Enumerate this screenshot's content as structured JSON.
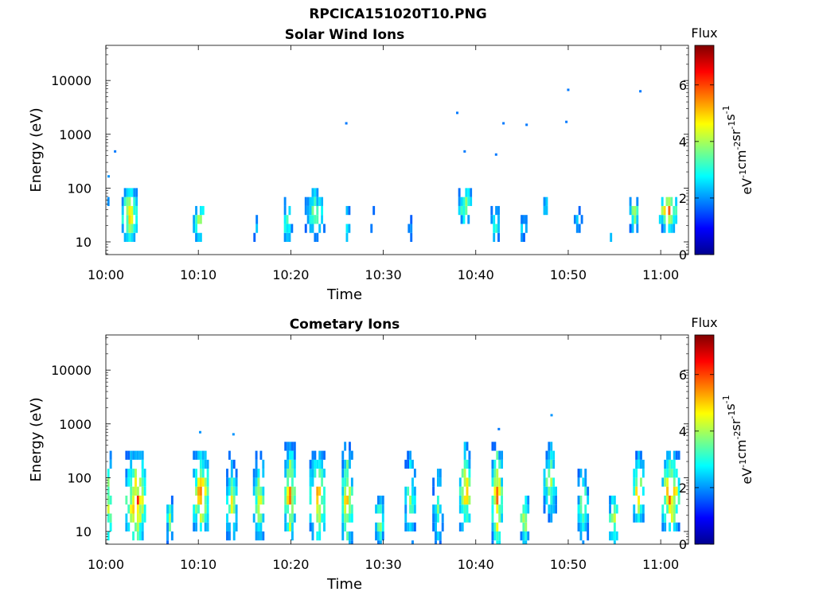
{
  "figure_title": "RPCICA151020T10.PNG",
  "chart_data": [
    {
      "type": "heatmap",
      "title": "Solar Wind Ions",
      "xlabel": "Time",
      "ylabel": "Energy (eV)",
      "x_range_minutes": [
        0,
        63
      ],
      "x_ticks": [
        {
          "minute": 0,
          "label": "10:00"
        },
        {
          "minute": 10,
          "label": "10:10"
        },
        {
          "minute": 20,
          "label": "10:20"
        },
        {
          "minute": 30,
          "label": "10:30"
        },
        {
          "minute": 40,
          "label": "10:40"
        },
        {
          "minute": 50,
          "label": "10:50"
        },
        {
          "minute": 60,
          "label": "11:00"
        }
      ],
      "y_scale": "log",
      "y_range": [
        5.8,
        45000
      ],
      "y_ticks": [
        {
          "value": 10,
          "label": "10"
        },
        {
          "value": 100,
          "label": "100"
        },
        {
          "value": 1000,
          "label": "1000"
        },
        {
          "value": 10000,
          "label": "10000"
        }
      ],
      "colorbar": {
        "title": "Flux",
        "range": [
          0,
          7.4
        ],
        "ticks": [
          0,
          2,
          4,
          6
        ],
        "units_base": [
          "eV",
          "cm",
          "sr",
          "s"
        ],
        "units_exp": [
          "-1",
          "-2",
          "-1",
          "-1"
        ]
      },
      "bursts": [
        {
          "t": 0.1,
          "e_lo": 25,
          "e_hi": 60,
          "peak": 3.0,
          "w": 0.4
        },
        {
          "t": 2.5,
          "e_lo": 12,
          "e_hi": 90,
          "peak": 5.3,
          "w": 1.6
        },
        {
          "t": 10.0,
          "e_lo": 12,
          "e_hi": 42,
          "peak": 4.8,
          "w": 1.2
        },
        {
          "t": 16.2,
          "e_lo": 7,
          "e_hi": 32,
          "peak": 2.6,
          "w": 0.5
        },
        {
          "t": 19.5,
          "e_lo": 10,
          "e_hi": 55,
          "peak": 3.8,
          "w": 1.0
        },
        {
          "t": 22.5,
          "e_lo": 14,
          "e_hi": 75,
          "peak": 4.2,
          "w": 2.0
        },
        {
          "t": 26.0,
          "e_lo": 12,
          "e_hi": 40,
          "peak": 3.8,
          "w": 0.6
        },
        {
          "t": 28.8,
          "e_lo": 12,
          "e_hi": 35,
          "peak": 2.8,
          "w": 0.4
        },
        {
          "t": 32.8,
          "e_lo": 7,
          "e_hi": 38,
          "peak": 2.5,
          "w": 0.3
        },
        {
          "t": 36.2,
          "e_lo": 12,
          "e_hi": 16,
          "peak": 2.4,
          "w": 0.3
        },
        {
          "t": 38.8,
          "e_lo": 22,
          "e_hi": 90,
          "peak": 4.4,
          "w": 1.4
        },
        {
          "t": 42.0,
          "e_lo": 10,
          "e_hi": 42,
          "peak": 3.8,
          "w": 0.8
        },
        {
          "t": 45.0,
          "e_lo": 10,
          "e_hi": 35,
          "peak": 3.0,
          "w": 0.8
        },
        {
          "t": 47.5,
          "e_lo": 28,
          "e_hi": 65,
          "peak": 3.4,
          "w": 0.4
        },
        {
          "t": 51.0,
          "e_lo": 12,
          "e_hi": 40,
          "peak": 2.8,
          "w": 0.8
        },
        {
          "t": 54.5,
          "e_lo": 7,
          "e_hi": 16,
          "peak": 2.4,
          "w": 0.5
        },
        {
          "t": 57.0,
          "e_lo": 18,
          "e_hi": 60,
          "peak": 4.6,
          "w": 0.8
        },
        {
          "t": 60.7,
          "e_lo": 20,
          "e_hi": 65,
          "peak": 5.6,
          "w": 1.8
        }
      ],
      "points": [
        {
          "t": 0.3,
          "e": 165,
          "v": 2.0
        },
        {
          "t": 1.0,
          "e": 480,
          "v": 1.8
        },
        {
          "t": 26.0,
          "e": 1600,
          "v": 1.8
        },
        {
          "t": 38.0,
          "e": 2500,
          "v": 1.8
        },
        {
          "t": 38.8,
          "e": 480,
          "v": 1.8
        },
        {
          "t": 42.2,
          "e": 420,
          "v": 1.8
        },
        {
          "t": 43.0,
          "e": 1600,
          "v": 1.8
        },
        {
          "t": 45.5,
          "e": 1500,
          "v": 1.8
        },
        {
          "t": 49.8,
          "e": 1700,
          "v": 1.8
        },
        {
          "t": 50.0,
          "e": 6700,
          "v": 1.8
        },
        {
          "t": 57.8,
          "e": 6300,
          "v": 1.8
        }
      ]
    },
    {
      "type": "heatmap",
      "title": "Cometary Ions",
      "xlabel": "Time",
      "ylabel": "Energy (eV)",
      "x_range_minutes": [
        0,
        63
      ],
      "x_ticks": [
        {
          "minute": 0,
          "label": "10:00"
        },
        {
          "minute": 10,
          "label": "10:10"
        },
        {
          "minute": 20,
          "label": "10:20"
        },
        {
          "minute": 30,
          "label": "10:30"
        },
        {
          "minute": 40,
          "label": "10:40"
        },
        {
          "minute": 50,
          "label": "10:50"
        },
        {
          "minute": 60,
          "label": "11:00"
        }
      ],
      "y_scale": "log",
      "y_range": [
        5.8,
        45000
      ],
      "y_ticks": [
        {
          "value": 10,
          "label": "10"
        },
        {
          "value": 100,
          "label": "100"
        },
        {
          "value": 1000,
          "label": "1000"
        },
        {
          "value": 10000,
          "label": "10000"
        }
      ],
      "colorbar": {
        "title": "Flux",
        "range": [
          0,
          7.4
        ],
        "ticks": [
          0,
          2,
          4,
          6
        ],
        "units_base": [
          "eV",
          "cm",
          "sr",
          "s"
        ],
        "units_exp": [
          "-1",
          "-2",
          "-1",
          "-1"
        ]
      },
      "bursts": [
        {
          "t": 0.2,
          "e_lo": 6,
          "e_hi": 300,
          "peak": 4.8,
          "w": 0.6
        },
        {
          "t": 3.2,
          "e_lo": 7,
          "e_hi": 260,
          "peak": 6.0,
          "w": 2.2
        },
        {
          "t": 6.8,
          "e_lo": 6,
          "e_hi": 40,
          "peak": 4.0,
          "w": 0.5
        },
        {
          "t": 10.2,
          "e_lo": 10,
          "e_hi": 300,
          "peak": 5.8,
          "w": 1.6
        },
        {
          "t": 13.5,
          "e_lo": 6,
          "e_hi": 250,
          "peak": 4.4,
          "w": 1.0
        },
        {
          "t": 16.5,
          "e_lo": 7,
          "e_hi": 300,
          "peak": 4.6,
          "w": 1.2
        },
        {
          "t": 19.8,
          "e_lo": 7,
          "e_hi": 400,
          "peak": 5.6,
          "w": 1.0
        },
        {
          "t": 22.8,
          "e_lo": 8,
          "e_hi": 300,
          "peak": 5.4,
          "w": 1.6
        },
        {
          "t": 26.0,
          "e_lo": 6,
          "e_hi": 400,
          "peak": 5.4,
          "w": 1.0
        },
        {
          "t": 29.5,
          "e_lo": 6,
          "e_hi": 45,
          "peak": 4.2,
          "w": 0.8
        },
        {
          "t": 32.8,
          "e_lo": 6,
          "e_hi": 300,
          "peak": 4.2,
          "w": 1.0
        },
        {
          "t": 35.8,
          "e_lo": 6,
          "e_hi": 220,
          "peak": 3.8,
          "w": 1.0
        },
        {
          "t": 38.8,
          "e_lo": 12,
          "e_hi": 350,
          "peak": 5.4,
          "w": 1.2
        },
        {
          "t": 42.2,
          "e_lo": 6,
          "e_hi": 400,
          "peak": 5.8,
          "w": 1.0
        },
        {
          "t": 45.2,
          "e_lo": 6,
          "e_hi": 45,
          "peak": 5.0,
          "w": 0.8
        },
        {
          "t": 48.0,
          "e_lo": 20,
          "e_hi": 420,
          "peak": 4.4,
          "w": 1.4
        },
        {
          "t": 51.5,
          "e_lo": 6,
          "e_hi": 220,
          "peak": 4.2,
          "w": 1.0
        },
        {
          "t": 54.8,
          "e_lo": 6,
          "e_hi": 45,
          "peak": 4.8,
          "w": 0.8
        },
        {
          "t": 57.5,
          "e_lo": 15,
          "e_hi": 230,
          "peak": 5.6,
          "w": 1.0
        },
        {
          "t": 61.0,
          "e_lo": 12,
          "e_hi": 250,
          "peak": 6.2,
          "w": 1.8
        }
      ],
      "points": [
        {
          "t": 10.2,
          "e": 700,
          "v": 2.0
        },
        {
          "t": 13.8,
          "e": 640,
          "v": 2.0
        },
        {
          "t": 42.5,
          "e": 800,
          "v": 1.8
        },
        {
          "t": 48.2,
          "e": 1450,
          "v": 2.0
        }
      ]
    }
  ]
}
